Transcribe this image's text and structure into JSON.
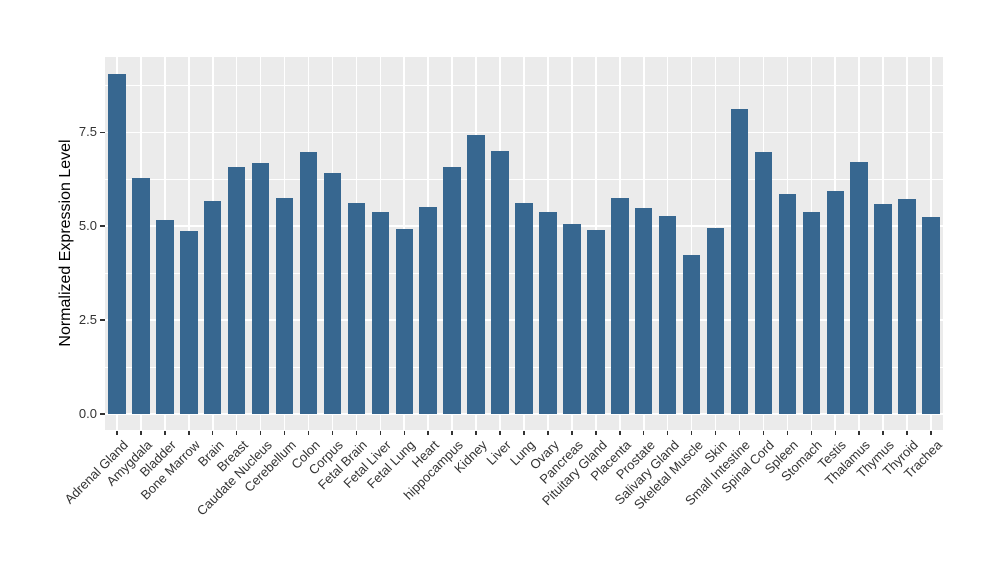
{
  "chart_data": {
    "type": "bar",
    "title": "",
    "xlabel": "",
    "ylabel": "Normalized Expression Level",
    "categories": [
      "Adrenal Gland",
      "Amygdala",
      "Bladder",
      "Bone Marrow",
      "Brain",
      "Breast",
      "Caudate Nucleus",
      "Cerebellum",
      "Colon",
      "Corpus",
      "Fetal Brain",
      "Fetal Liver",
      "Fetal Lung",
      "Heart",
      "hippocampus",
      "Kidney",
      "Liver",
      "Lung",
      "Ovary",
      "Pancreas",
      "Pituitary Gland",
      "Placenta",
      "Prostate",
      "Salivary Gland",
      "Skeletal Muscle",
      "Skin",
      "Small Intestine",
      "Spinal Cord",
      "Spleen",
      "Stomach",
      "Testis",
      "Thalamus",
      "Thymus",
      "Thyroid",
      "Trachea"
    ],
    "values": [
      9.05,
      6.28,
      5.17,
      4.86,
      5.66,
      6.57,
      6.67,
      5.74,
      6.97,
      6.41,
      5.63,
      5.39,
      4.92,
      5.52,
      6.57,
      7.44,
      7.0,
      5.63,
      5.37,
      5.05,
      4.9,
      5.75,
      5.49,
      5.27,
      4.23,
      4.94,
      8.12,
      6.98,
      5.85,
      5.37,
      5.94,
      6.7,
      5.58,
      5.72,
      5.24
    ],
    "ylim": [
      0,
      9.5
    ],
    "ytick_values": [
      0,
      2.5,
      5,
      7.5
    ],
    "ytick_labels": [
      "0.0",
      "2.5",
      "5.0",
      "7.5"
    ],
    "y_minor_values": [
      1.25,
      3.75,
      6.25,
      8.75
    ],
    "x_label_rotation_deg": 45,
    "grid": true,
    "legend": false,
    "colors": {
      "bar": "#376790",
      "panel_background": "#EBEBEB",
      "gridline": "#FFFFFF",
      "axis_text": "#333333",
      "tick_mark": "#333333",
      "axis_title": "#000000"
    }
  }
}
